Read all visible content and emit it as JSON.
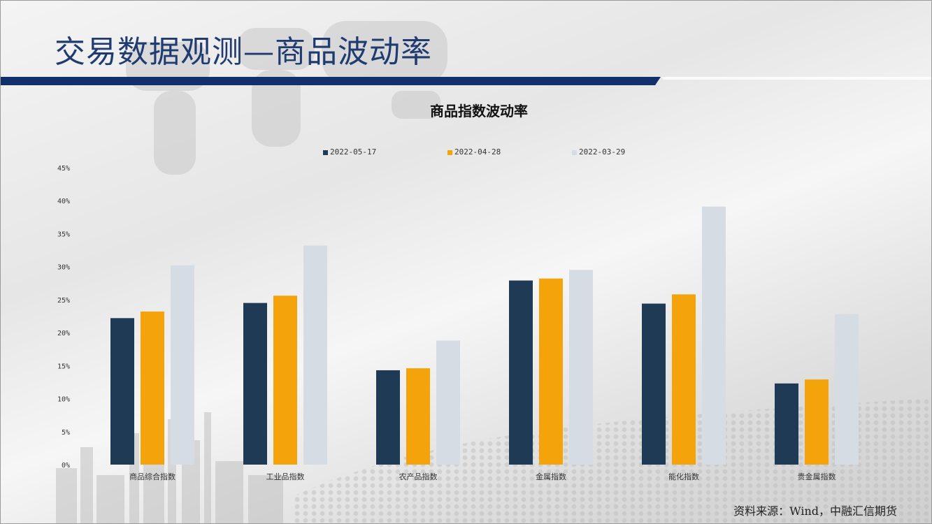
{
  "page": {
    "title": "交易数据观测—商品波动率",
    "source": "资料来源：Wind，中融汇信期货"
  },
  "colors": {
    "title": "#1f3b70",
    "rule": "#12306b",
    "series": [
      "#1f3a55",
      "#f5a30a",
      "#d6dce4"
    ]
  },
  "chart_data": {
    "type": "bar",
    "title": "商品指数波动率",
    "xlabel": "",
    "ylabel": "",
    "categories": [
      "商品综合指数",
      "工业品指数",
      "农产品指数",
      "金属指数",
      "能化指数",
      "贵金属指数"
    ],
    "series": [
      {
        "name": "2022-05-17",
        "values": [
          22.2,
          24.5,
          14.3,
          27.9,
          24.4,
          12.3
        ]
      },
      {
        "name": "2022-04-28",
        "values": [
          23.2,
          25.6,
          14.6,
          28.2,
          25.8,
          12.9
        ]
      },
      {
        "name": "2022-03-29",
        "values": [
          30.2,
          33.2,
          18.8,
          29.5,
          39.1,
          22.8
        ]
      }
    ],
    "ylim": [
      0,
      45
    ],
    "yticks": [
      "0%",
      "5%",
      "10%",
      "15%",
      "20%",
      "25%",
      "30%",
      "35%",
      "40%",
      "45%"
    ],
    "grid": false,
    "legend_position": "top"
  }
}
